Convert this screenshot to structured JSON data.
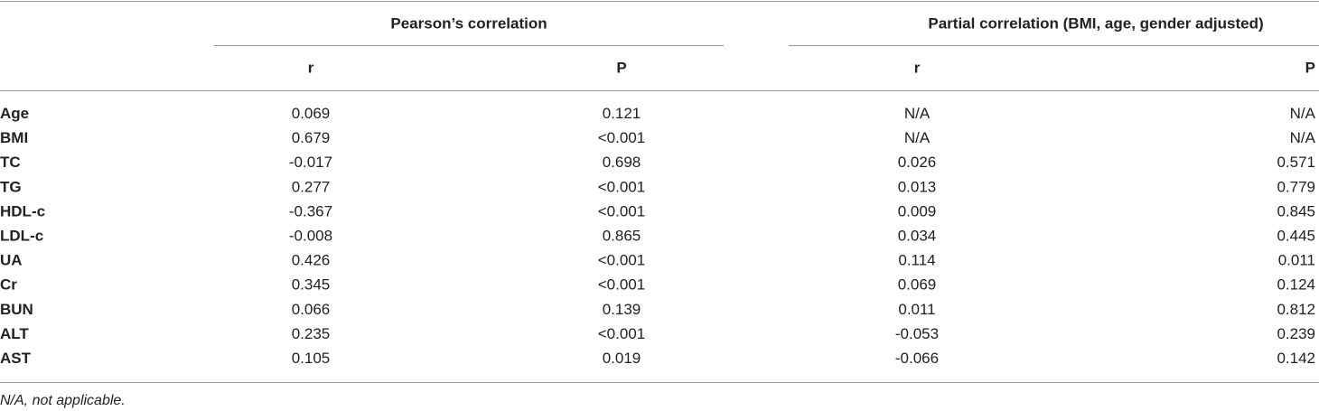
{
  "table": {
    "group_headers": [
      "Pearson’s correlation",
      "Partial correlation (BMI, age, gender adjusted)"
    ],
    "column_headers": [
      "r",
      "P",
      "r",
      "P"
    ],
    "rows": [
      [
        "Age",
        "0.069",
        "0.121",
        "N/A",
        "N/A"
      ],
      [
        "BMI",
        "0.679",
        "<0.001",
        "N/A",
        "N/A"
      ],
      [
        "TC",
        "-0.017",
        "0.698",
        "0.026",
        "0.571"
      ],
      [
        "TG",
        "0.277",
        "<0.001",
        "0.013",
        "0.779"
      ],
      [
        "HDL-c",
        "-0.367",
        "<0.001",
        "0.009",
        "0.845"
      ],
      [
        "LDL-c",
        "-0.008",
        "0.865",
        "0.034",
        "0.445"
      ],
      [
        "UA",
        "0.426",
        "<0.001",
        "0.114",
        "0.011"
      ],
      [
        "Cr",
        "0.345",
        "<0.001",
        "0.069",
        "0.124"
      ],
      [
        "BUN",
        "0.066",
        "0.139",
        "0.011",
        "0.812"
      ],
      [
        "ALT",
        "0.235",
        "<0.001",
        "-0.053",
        "0.239"
      ],
      [
        "AST",
        "0.105",
        "0.019",
        "-0.066",
        "0.142"
      ]
    ]
  },
  "footnote": "N/A, not applicable."
}
